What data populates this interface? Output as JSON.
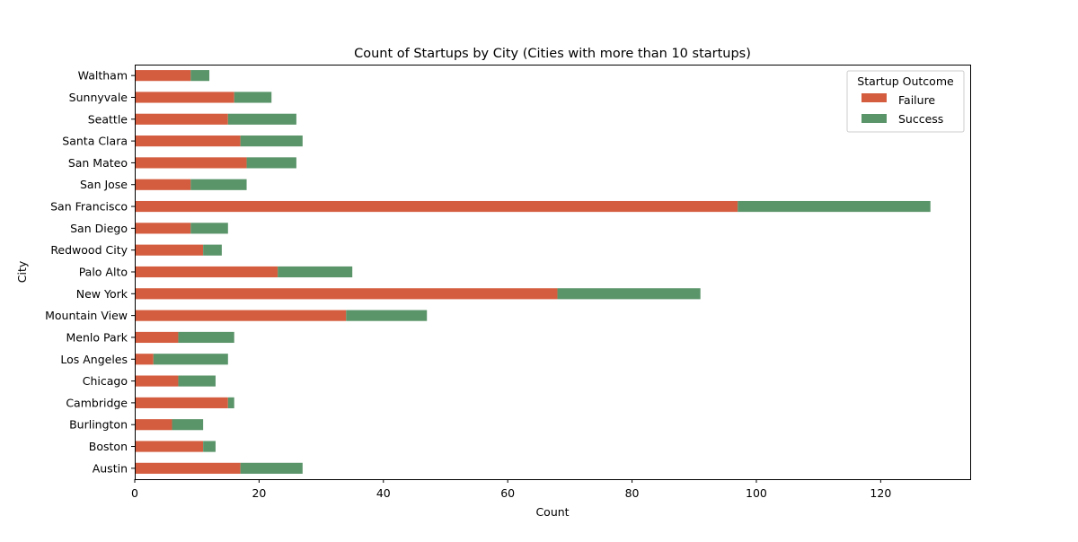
{
  "chart_data": {
    "type": "bar",
    "orientation": "horizontal",
    "stacked": true,
    "title": "Count of Startups by City (Cities with more than 10 startups)",
    "xlabel": "Count",
    "ylabel": "City",
    "xlim": [
      0,
      134.4
    ],
    "xticks": [
      0,
      20,
      40,
      60,
      80,
      100,
      120
    ],
    "grid": false,
    "legend": {
      "title": "Startup Outcome",
      "placement": "top-right"
    },
    "categories": [
      "Austin",
      "Boston",
      "Burlington",
      "Cambridge",
      "Chicago",
      "Los Angeles",
      "Menlo Park",
      "Mountain View",
      "New York",
      "Palo Alto",
      "Redwood City",
      "San Diego",
      "San Francisco",
      "San Jose",
      "San Mateo",
      "Santa Clara",
      "Seattle",
      "Sunnyvale",
      "Waltham"
    ],
    "series": [
      {
        "name": "Failure",
        "color": "#d45d3f",
        "values": [
          17,
          11,
          6,
          15,
          7,
          3,
          7,
          34,
          68,
          23,
          11,
          9,
          97,
          9,
          18,
          17,
          15,
          16,
          9
        ]
      },
      {
        "name": "Success",
        "color": "#5a9469",
        "values": [
          10,
          2,
          5,
          1,
          6,
          12,
          9,
          13,
          23,
          12,
          3,
          6,
          31,
          9,
          8,
          10,
          11,
          6,
          3
        ]
      }
    ]
  }
}
